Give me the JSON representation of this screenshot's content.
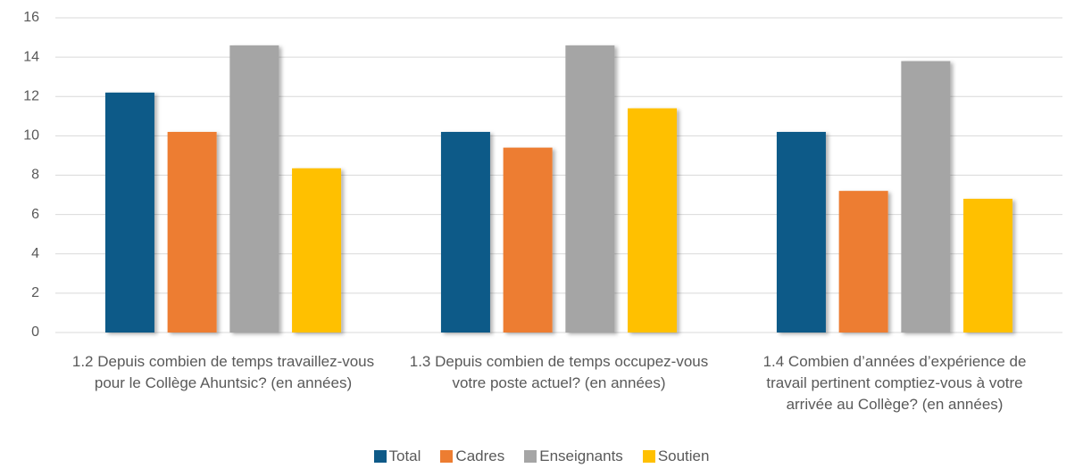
{
  "chart_data": {
    "type": "bar",
    "categories": [
      "1.2 Depuis combien de temps travaillez-vous pour le Collège Ahuntsic? (en années)",
      "1.3 Depuis combien de temps occupez-vous votre poste actuel? (en années)",
      "1.4 Combien d’années d’expérience de travail pertinent comptiez-vous à votre arrivée au Collège? (en années)"
    ],
    "series": [
      {
        "name": "Total",
        "color": "#0e5a88",
        "values": [
          12.2,
          10.2,
          10.2
        ]
      },
      {
        "name": "Cadres",
        "color": "#ed7d31",
        "values": [
          10.2,
          9.4,
          7.2
        ]
      },
      {
        "name": "Enseignants",
        "color": "#a5a5a5",
        "values": [
          14.6,
          14.6,
          13.8
        ]
      },
      {
        "name": "Soutien",
        "color": "#ffc000",
        "values": [
          8.35,
          11.4,
          6.8
        ]
      }
    ],
    "ylim": [
      0,
      16
    ],
    "yticks": [
      0,
      2,
      4,
      6,
      8,
      10,
      12,
      14,
      16
    ],
    "grid": true,
    "legend": "bottom"
  }
}
